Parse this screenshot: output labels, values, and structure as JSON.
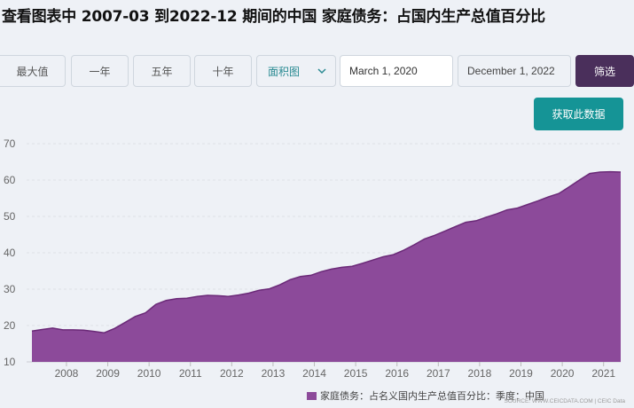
{
  "title": "查看图表中 2007-03 到2022-12 期间的中国 家庭债务：占国内生产总值百分比",
  "controls": {
    "max_label": "最大值",
    "one_year": "一年",
    "five_year": "五年",
    "ten_year": "十年",
    "chart_type": "面积图",
    "start_date": "March 1, 2020",
    "end_date": "December 1, 2022",
    "filter_label": "筛选",
    "fetch_label": "获取此数据"
  },
  "legend_label": "家庭债务：占名义国内生产总值百分比：季度：中国",
  "source": "SOURCE: WWW.CEICDATA.COM | CEIC Data",
  "colors": {
    "fill": "#8c4a9a",
    "line": "#6b2a78",
    "accent": "#159496",
    "filter": "#4a2f5b"
  },
  "chart_data": {
    "type": "area",
    "title": "",
    "xlabel": "",
    "ylabel": "",
    "ylim": [
      10,
      70
    ],
    "yticks": [
      10,
      20,
      30,
      40,
      50,
      60,
      70
    ],
    "xlim": [
      2007.25,
      2021.5
    ],
    "xticks": [
      2008,
      2009,
      2010,
      2011,
      2012,
      2013,
      2014,
      2015,
      2016,
      2017,
      2018,
      2019,
      2020,
      2021
    ],
    "grid": true,
    "legend": "bottom",
    "series": [
      {
        "name": "家庭债务：占名义国内生产总值百分比：季度：中国",
        "x": [
          2007.25,
          2007.5,
          2007.75,
          2008.0,
          2008.25,
          2008.5,
          2008.75,
          2009.0,
          2009.25,
          2009.5,
          2009.75,
          2010.0,
          2010.25,
          2010.5,
          2010.75,
          2011.0,
          2011.25,
          2011.5,
          2011.75,
          2012.0,
          2012.25,
          2012.5,
          2012.75,
          2013.0,
          2013.25,
          2013.5,
          2013.75,
          2014.0,
          2014.25,
          2014.5,
          2014.75,
          2015.0,
          2015.25,
          2015.5,
          2015.75,
          2016.0,
          2016.25,
          2016.5,
          2016.75,
          2017.0,
          2017.25,
          2017.5,
          2017.75,
          2018.0,
          2018.25,
          2018.5,
          2018.75,
          2019.0,
          2019.25,
          2019.5,
          2019.75,
          2020.0,
          2020.25,
          2020.5,
          2020.75,
          2021.0,
          2021.25,
          2021.5
        ],
        "values": [
          18.5,
          18.9,
          19.3,
          18.8,
          18.8,
          18.7,
          18.4,
          18.0,
          19.2,
          20.8,
          22.5,
          23.5,
          25.8,
          26.9,
          27.4,
          27.5,
          28.0,
          28.3,
          28.2,
          28.0,
          28.4,
          28.9,
          29.7,
          30.1,
          31.2,
          32.6,
          33.5,
          33.8,
          34.8,
          35.5,
          36.0,
          36.3,
          37.1,
          38.0,
          38.9,
          39.5,
          40.7,
          42.2,
          43.8,
          44.8,
          46.0,
          47.2,
          48.4,
          48.8,
          49.8,
          50.7,
          51.8,
          52.3,
          53.3,
          54.3,
          55.4,
          56.3,
          58.1,
          60.0,
          61.8,
          62.2,
          62.3,
          62.2
        ]
      }
    ]
  }
}
